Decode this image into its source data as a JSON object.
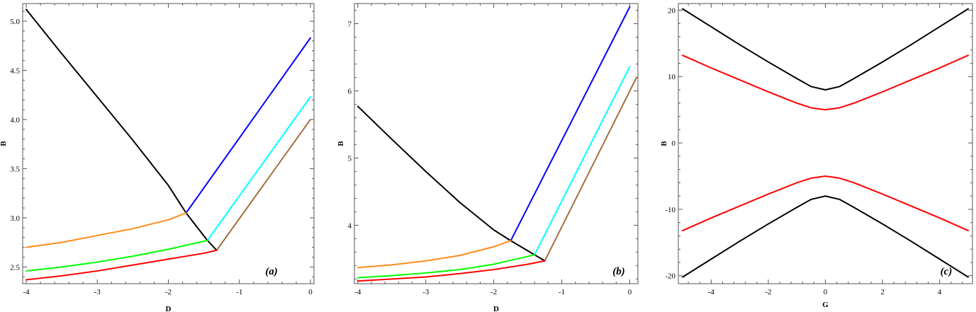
{
  "chart_data": [
    {
      "type": "line",
      "panel_label": "(a)",
      "xlabel": "D",
      "ylabel": "B",
      "xlim": [
        -4.05,
        0.05
      ],
      "ylim": [
        2.33,
        5.18
      ],
      "xticks": [
        -4,
        -3,
        -2,
        -1,
        0
      ],
      "yticks": [
        2.5,
        3.0,
        3.5,
        4.0,
        4.5,
        5.0
      ],
      "xtick_labels": [
        "-4",
        "-3",
        "-2",
        "-1",
        "0"
      ],
      "ytick_labels": [
        "2.5",
        "3.0",
        "3.5",
        "4.0",
        "4.5",
        "5.0"
      ],
      "grid": false,
      "series": [
        {
          "color": "#000000",
          "points": [
            [
              -4.0,
              5.12
            ],
            [
              -3.5,
              4.67
            ],
            [
              -3.0,
              4.23
            ],
            [
              -2.5,
              3.79
            ],
            [
              -2.0,
              3.33
            ],
            [
              -1.75,
              3.05
            ],
            [
              -1.45,
              2.77
            ],
            [
              -1.32,
              2.67
            ]
          ]
        },
        {
          "color": "#0000ff",
          "points": [
            [
              -1.75,
              3.05
            ],
            [
              0.0,
              4.83
            ]
          ]
        },
        {
          "color": "#00ffff",
          "points": [
            [
              -1.45,
              2.77
            ],
            [
              0.0,
              4.23
            ]
          ]
        },
        {
          "color": "#a0703c",
          "points": [
            [
              -1.32,
              2.67
            ],
            [
              0.0,
              4.0
            ]
          ]
        },
        {
          "color": "#ff8c1a",
          "points": [
            [
              -4.0,
              2.7
            ],
            [
              -3.5,
              2.75
            ],
            [
              -3.0,
              2.82
            ],
            [
              -2.5,
              2.89
            ],
            [
              -2.0,
              2.98
            ],
            [
              -1.75,
              3.05
            ]
          ]
        },
        {
          "color": "#00ff00",
          "points": [
            [
              -4.0,
              2.46
            ],
            [
              -3.5,
              2.5
            ],
            [
              -3.0,
              2.55
            ],
            [
              -2.5,
              2.61
            ],
            [
              -2.0,
              2.68
            ],
            [
              -1.45,
              2.77
            ]
          ]
        },
        {
          "color": "#ff0000",
          "points": [
            [
              -4.0,
              2.37
            ],
            [
              -3.5,
              2.41
            ],
            [
              -3.0,
              2.46
            ],
            [
              -2.5,
              2.52
            ],
            [
              -2.0,
              2.58
            ],
            [
              -1.5,
              2.64
            ],
            [
              -1.32,
              2.67
            ]
          ]
        }
      ]
    },
    {
      "type": "line",
      "panel_label": "(b)",
      "xlabel": "D",
      "ylabel": "B",
      "xlim": [
        -4.05,
        0.12
      ],
      "ylim": [
        3.13,
        7.3
      ],
      "xticks": [
        -4,
        -3,
        -2,
        -1,
        0
      ],
      "yticks": [
        4,
        5,
        6,
        7
      ],
      "xtick_labels": [
        "-4",
        "-3",
        "-2",
        "-1",
        "0"
      ],
      "ytick_labels": [
        "4",
        "5",
        "6",
        "7"
      ],
      "grid": false,
      "series": [
        {
          "color": "#000000",
          "points": [
            [
              -4.0,
              5.77
            ],
            [
              -3.5,
              5.28
            ],
            [
              -3.0,
              4.8
            ],
            [
              -2.5,
              4.34
            ],
            [
              -2.0,
              3.93
            ],
            [
              -1.75,
              3.77
            ],
            [
              -1.4,
              3.56
            ],
            [
              -1.25,
              3.47
            ]
          ]
        },
        {
          "color": "#0000ff",
          "points": [
            [
              -1.75,
              3.77
            ],
            [
              0.0,
              7.25
            ]
          ]
        },
        {
          "color": "#00ffff",
          "points": [
            [
              -1.4,
              3.56
            ],
            [
              0.0,
              6.36
            ]
          ]
        },
        {
          "color": "#a0703c",
          "points": [
            [
              -1.25,
              3.47
            ],
            [
              0.1,
              6.2
            ]
          ]
        },
        {
          "color": "#ff8c1a",
          "points": [
            [
              -4.0,
              3.37
            ],
            [
              -3.5,
              3.41
            ],
            [
              -3.0,
              3.47
            ],
            [
              -2.5,
              3.55
            ],
            [
              -2.0,
              3.68
            ],
            [
              -1.75,
              3.77
            ]
          ]
        },
        {
          "color": "#00ff00",
          "points": [
            [
              -4.0,
              3.22
            ],
            [
              -3.5,
              3.25
            ],
            [
              -3.0,
              3.29
            ],
            [
              -2.5,
              3.34
            ],
            [
              -2.0,
              3.42
            ],
            [
              -1.4,
              3.56
            ]
          ]
        },
        {
          "color": "#ff0000",
          "points": [
            [
              -4.0,
              3.17
            ],
            [
              -3.5,
              3.2
            ],
            [
              -3.0,
              3.23
            ],
            [
              -2.5,
              3.28
            ],
            [
              -2.0,
              3.34
            ],
            [
              -1.5,
              3.42
            ],
            [
              -1.25,
              3.47
            ]
          ]
        }
      ]
    },
    {
      "type": "line",
      "panel_label": "(c)",
      "xlabel": "G",
      "ylabel": "B",
      "xlim": [
        -5.15,
        5.15
      ],
      "ylim": [
        -21.2,
        21.0
      ],
      "xticks": [
        -4,
        -2,
        0,
        2,
        4
      ],
      "yticks": [
        -20,
        -10,
        0,
        10,
        20
      ],
      "xtick_labels": [
        "-4",
        "-2",
        "0",
        "2",
        "4"
      ],
      "ytick_labels": [
        "-20",
        "-10",
        "0",
        "10",
        "20"
      ],
      "grid": false,
      "series": [
        {
          "color": "#000000",
          "points": [
            [
              -5,
              20.2
            ],
            [
              -4,
              17.5
            ],
            [
              -3,
              14.8
            ],
            [
              -2,
              12.2
            ],
            [
              -1,
              9.7
            ],
            [
              -0.5,
              8.5
            ],
            [
              0,
              8.0
            ],
            [
              0.5,
              8.5
            ],
            [
              1,
              9.7
            ],
            [
              2,
              12.2
            ],
            [
              3,
              14.8
            ],
            [
              4,
              17.5
            ],
            [
              5,
              20.2
            ]
          ]
        },
        {
          "color": "#ff0000",
          "points": [
            [
              -5,
              13.2
            ],
            [
              -4,
              11.3
            ],
            [
              -3,
              9.5
            ],
            [
              -2,
              7.7
            ],
            [
              -1,
              6.0
            ],
            [
              -0.5,
              5.3
            ],
            [
              0,
              5.0
            ],
            [
              0.5,
              5.3
            ],
            [
              1,
              6.0
            ],
            [
              2,
              7.7
            ],
            [
              3,
              9.5
            ],
            [
              4,
              11.3
            ],
            [
              5,
              13.2
            ]
          ]
        },
        {
          "color": "#ff0000",
          "points": [
            [
              -5,
              -13.2
            ],
            [
              -4,
              -11.3
            ],
            [
              -3,
              -9.5
            ],
            [
              -2,
              -7.7
            ],
            [
              -1,
              -6.0
            ],
            [
              -0.5,
              -5.3
            ],
            [
              0,
              -5.0
            ],
            [
              0.5,
              -5.3
            ],
            [
              1,
              -6.0
            ],
            [
              2,
              -7.7
            ],
            [
              3,
              -9.5
            ],
            [
              4,
              -11.3
            ],
            [
              5,
              -13.2
            ]
          ]
        },
        {
          "color": "#000000",
          "points": [
            [
              -5,
              -20.2
            ],
            [
              -4,
              -17.5
            ],
            [
              -3,
              -14.8
            ],
            [
              -2,
              -12.2
            ],
            [
              -1,
              -9.7
            ],
            [
              -0.5,
              -8.5
            ],
            [
              0,
              -8.0
            ],
            [
              0.5,
              -8.5
            ],
            [
              1,
              -9.7
            ],
            [
              2,
              -12.2
            ],
            [
              3,
              -14.8
            ],
            [
              4,
              -17.5
            ],
            [
              5,
              -20.2
            ]
          ]
        }
      ]
    }
  ]
}
